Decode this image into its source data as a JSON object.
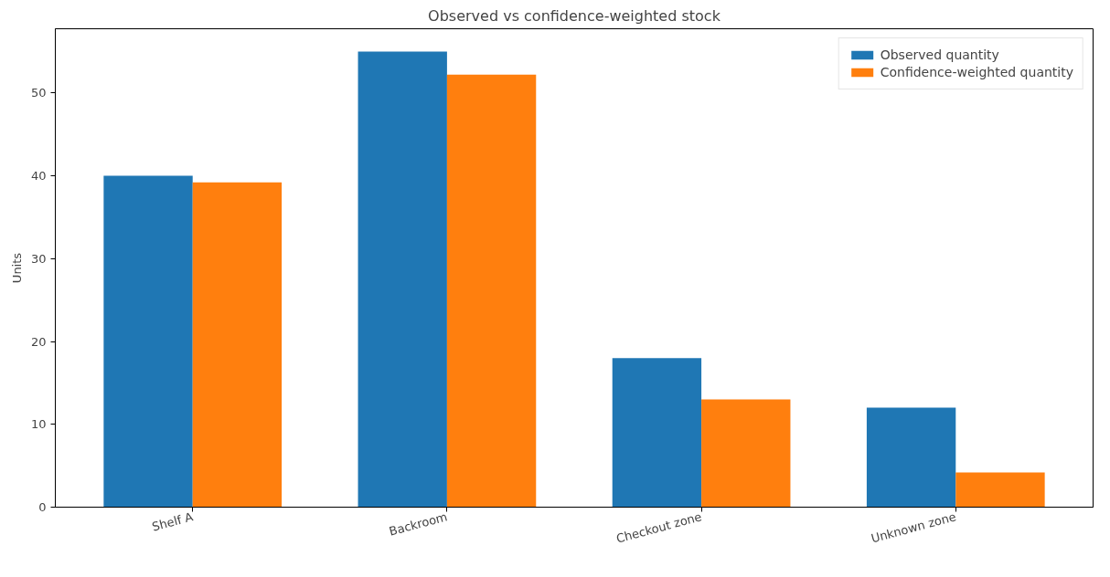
{
  "chart_data": {
    "type": "bar",
    "title": "Observed vs confidence-weighted stock",
    "ylabel": "Units",
    "categories": [
      "Shelf A",
      "Backroom",
      "Checkout zone",
      "Unknown zone"
    ],
    "series": [
      {
        "name": "Observed quantity",
        "color": "#1f77b4",
        "values": [
          40,
          55,
          18,
          12
        ]
      },
      {
        "name": "Confidence-weighted quantity",
        "color": "#ff7f0e",
        "values": [
          39.2,
          52.2,
          13.0,
          4.2
        ]
      }
    ],
    "ylim": [
      0,
      57.75
    ],
    "yticks": [
      0,
      10,
      20,
      30,
      40,
      50
    ],
    "grid": false,
    "legend": "top right"
  }
}
